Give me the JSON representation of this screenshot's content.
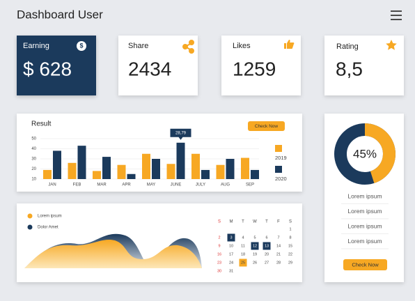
{
  "header": {
    "title": "Dashboard User"
  },
  "cards": [
    {
      "label": "Earning",
      "icon": "$",
      "value": "$ 628"
    },
    {
      "label": "Share",
      "value": "2434"
    },
    {
      "label": "Likes",
      "value": "1259"
    },
    {
      "label": "Rating",
      "value": "8,5"
    }
  ],
  "result": {
    "title": "Result",
    "button": "Check Now",
    "tooltip": "28,79",
    "categories": [
      "JAN",
      "FEB",
      "MAR",
      "APR",
      "MAY",
      "JUNE",
      "JULY",
      "AUG",
      "SEP"
    ],
    "ylim": [
      10,
      50
    ],
    "yticks": [
      10,
      20,
      30,
      40,
      50
    ],
    "series": [
      {
        "name": "2019",
        "color": "#f7a823",
        "values": [
          19,
          26,
          18,
          24,
          35,
          25,
          35,
          24,
          31
        ]
      },
      {
        "name": "2020",
        "color": "#1b3a5c",
        "values": [
          38,
          43,
          32,
          15,
          30,
          46,
          19,
          30,
          19
        ]
      }
    ]
  },
  "donut": {
    "values": [
      45
    ],
    "value_labels": [
      "45%"
    ],
    "items": [
      "Lorem ipsum",
      "Lorem ipsum",
      "Lorem ipsum",
      "Lorem ipsum"
    ],
    "button": "Check Now"
  },
  "area": {
    "legend": [
      "Lorem ipsum",
      "Dolor Amet"
    ]
  },
  "calendar": {
    "weekdays": [
      "S",
      "M",
      "T",
      "W",
      "T",
      "F",
      "S"
    ],
    "weeks": [
      [
        null,
        null,
        null,
        null,
        null,
        null,
        1
      ],
      [
        2,
        3,
        4,
        5,
        6,
        7,
        8
      ],
      [
        9,
        10,
        11,
        12,
        13,
        14,
        15
      ],
      [
        16,
        17,
        18,
        19,
        20,
        21,
        22
      ],
      [
        23,
        24,
        25,
        26,
        27,
        28,
        29
      ],
      [
        30,
        31,
        null,
        null,
        null,
        null,
        null
      ]
    ],
    "highlighted": [
      3,
      12,
      13
    ],
    "accent": [
      25
    ]
  }
}
